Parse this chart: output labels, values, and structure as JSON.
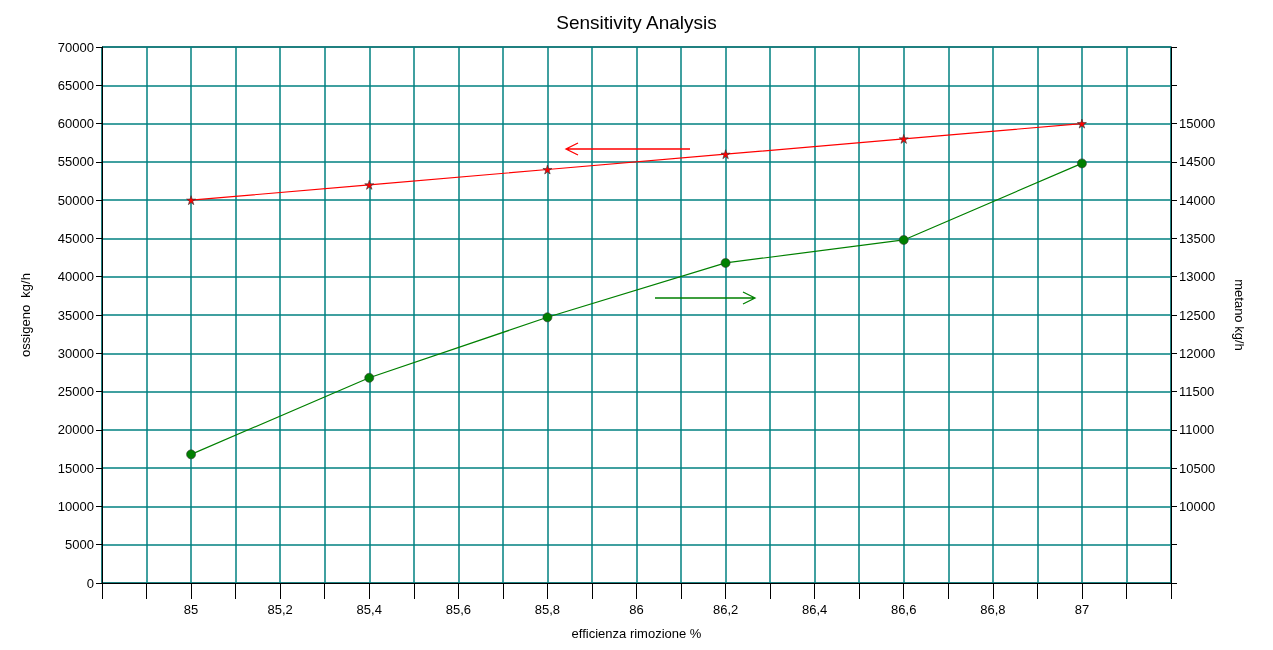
{
  "chart_data": {
    "type": "line",
    "title": "Sensitivity Analysis",
    "xlabel": "efficienza rimozione %",
    "ylabel": "ossigeno  kg/h",
    "y2label": "metano kg/h",
    "x": [
      85,
      85.4,
      85.8,
      86.2,
      86.6,
      87
    ],
    "series": [
      {
        "color": "#ff0000",
        "marker": "star",
        "values": [
          50000,
          52000,
          54000,
          56000,
          58000,
          60000
        ]
      },
      {
        "color": "#008000",
        "marker": "circle",
        "axis": "y2",
        "values": [
          10680,
          11680,
          12470,
          13180,
          13480,
          14480
        ]
      }
    ],
    "xlim": [
      84.8,
      87.2
    ],
    "xticks": [
      {
        "value": 84.8,
        "label": null
      },
      {
        "value": 84.9,
        "label": null
      },
      85,
      {
        "value": 85.1,
        "label": null
      },
      {
        "value": 85.2,
        "label": "85,2"
      },
      {
        "value": 85.3,
        "label": null
      },
      {
        "value": 85.4,
        "label": "85,4"
      },
      {
        "value": 85.5,
        "label": null
      },
      {
        "value": 85.6,
        "label": "85,6"
      },
      {
        "value": 85.7,
        "label": null
      },
      {
        "value": 85.8,
        "label": "85,8"
      },
      {
        "value": 85.9,
        "label": null
      },
      86,
      {
        "value": 86.1,
        "label": null
      },
      {
        "value": 86.2,
        "label": "86,2"
      },
      {
        "value": 86.3,
        "label": null
      },
      {
        "value": 86.4,
        "label": "86,4"
      },
      {
        "value": 86.5,
        "label": null
      },
      {
        "value": 86.6,
        "label": "86,6"
      },
      {
        "value": 86.7,
        "label": null
      },
      {
        "value": 86.8,
        "label": "86,8"
      },
      {
        "value": 86.9,
        "label": null
      },
      87,
      {
        "value": 87.1,
        "label": null
      },
      {
        "value": 87.2,
        "label": null
      }
    ],
    "ylim": [
      0,
      70000
    ],
    "yticks": [
      0,
      5000,
      10000,
      15000,
      20000,
      25000,
      30000,
      35000,
      40000,
      45000,
      50000,
      55000,
      60000,
      65000,
      70000
    ],
    "y2lim": [
      9000,
      16000
    ],
    "y2ticks": [
      {
        "value": 9000,
        "label": null
      },
      {
        "value": 9500,
        "label": null
      },
      10000,
      10500,
      11000,
      11500,
      12000,
      12500,
      13000,
      13500,
      14000,
      14500,
      15000,
      {
        "value": 15500,
        "label": null
      },
      {
        "value": 16000,
        "label": null
      }
    ],
    "grid": true,
    "line_style": "solid"
  }
}
